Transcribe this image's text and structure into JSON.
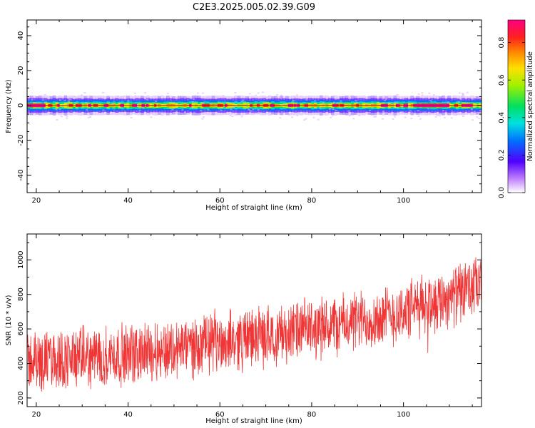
{
  "title": "C2E3.2025.005.02.39.G09",
  "chart_data": [
    {
      "type": "heatmap",
      "xlabel": "Height of straight line (km)",
      "ylabel": "Frequency (Hz)",
      "xlim": [
        18,
        117
      ],
      "ylim": [
        -50,
        49
      ],
      "x_ticks": [
        20,
        40,
        60,
        80,
        100
      ],
      "y_ticks": [
        -40,
        -20,
        0,
        20,
        40
      ],
      "colorbar": {
        "label": "Normalized spectral amplitude",
        "range": [
          0.0,
          0.92
        ],
        "ticks": [
          0.0,
          0.2,
          0.4,
          0.6,
          0.8
        ]
      },
      "band": {
        "center_frequency": 0,
        "core_halfwidth": 1,
        "halo_halfwidth": 4,
        "core_amplitude": 0.8,
        "strong_segments": [
          {
            "x": [
              18,
              22
            ],
            "amplitude": 0.85
          },
          {
            "x": [
              100,
              101
            ],
            "amplitude": 0.88
          },
          {
            "x": [
              103,
              110
            ],
            "amplitude": 0.9
          }
        ],
        "gap_region": {
          "x": [
            101,
            110
          ],
          "note": ""
        }
      }
    },
    {
      "type": "line",
      "xlabel": "Height of straight line (km)",
      "ylabel": "SNR (10 * v/v)",
      "xlim": [
        18,
        117
      ],
      "ylim": [
        150,
        1150
      ],
      "x_ticks": [
        20,
        40,
        60,
        80,
        100
      ],
      "y_ticks": [
        200,
        400,
        600,
        800,
        1000
      ],
      "color": "#ef3535",
      "trend": [
        {
          "x": 18,
          "y": 410
        },
        {
          "x": 40,
          "y": 450
        },
        {
          "x": 60,
          "y": 520
        },
        {
          "x": 80,
          "y": 600
        },
        {
          "x": 98,
          "y": 680
        },
        {
          "x": 117,
          "y": 850
        }
      ],
      "noise_range": 170,
      "max_y": 1150,
      "min_y": 150
    }
  ]
}
